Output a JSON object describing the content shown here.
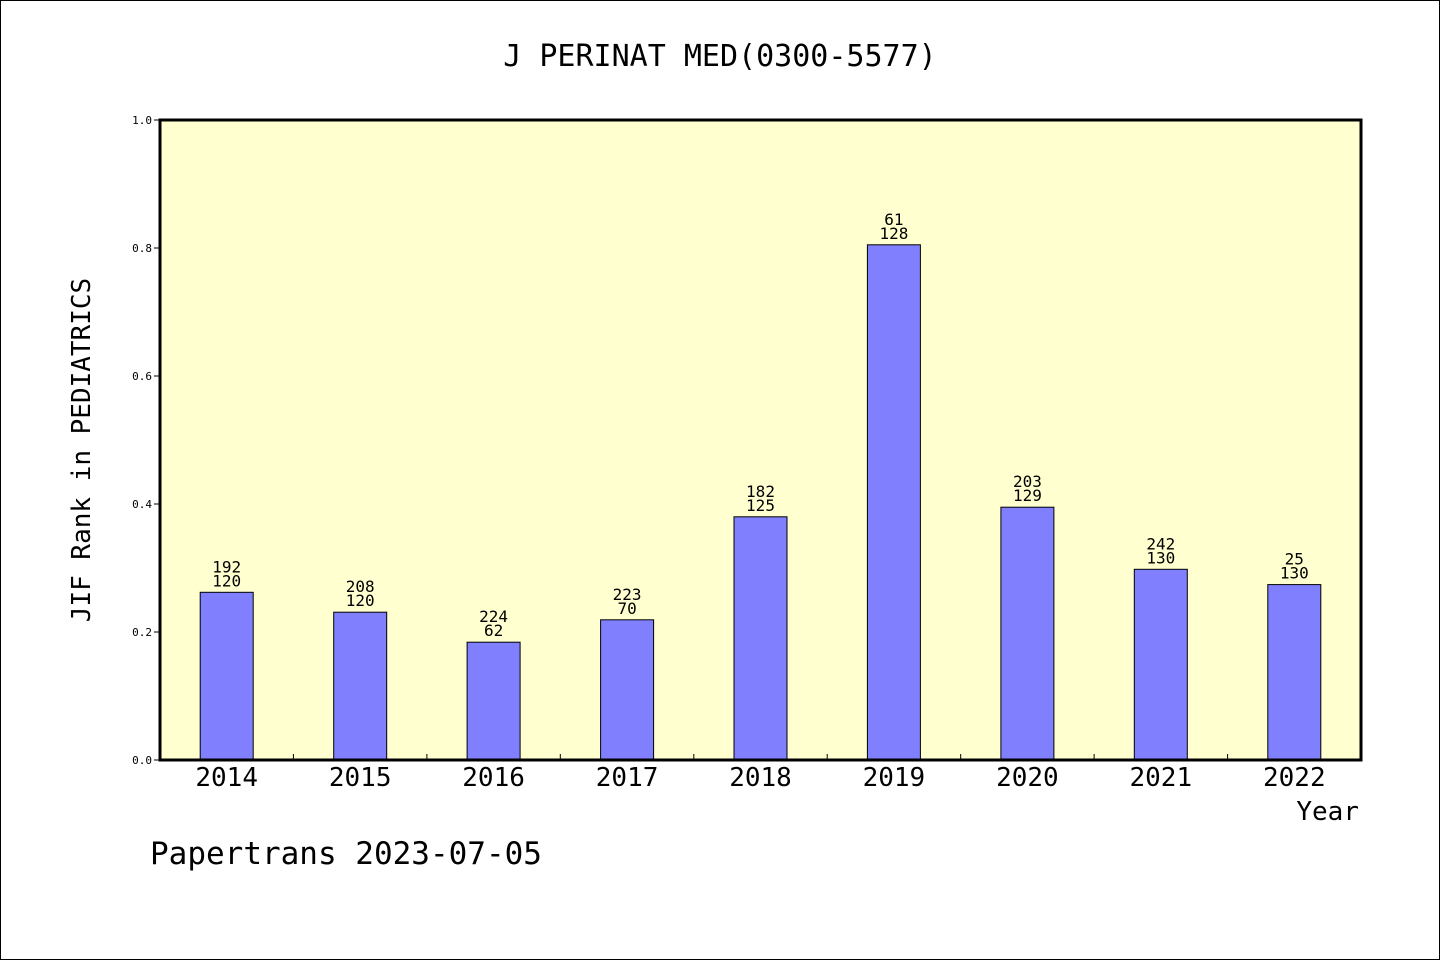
{
  "chart_data": {
    "type": "bar",
    "title": "J PERINAT MED(0300-5577)",
    "xlabel": "Year",
    "ylabel": "JIF Rank in PEDIATRICS",
    "ylim": [
      0,
      1.0
    ],
    "yticks": [
      "0.0",
      "0.2",
      "0.4",
      "0.6",
      "0.8",
      "1.0"
    ],
    "grid": false,
    "categories": [
      "2014",
      "2015",
      "2016",
      "2017",
      "2018",
      "2019",
      "2020",
      "2021",
      "2022"
    ],
    "values": [
      0.262,
      0.231,
      0.184,
      0.219,
      0.38,
      0.805,
      0.395,
      0.298,
      0.274
    ],
    "labels_top": [
      "192",
      "208",
      "224",
      "223",
      "182",
      "61",
      "203",
      "242",
      "25"
    ],
    "labels_bottom": [
      "120",
      "120",
      "62",
      "70",
      "125",
      "128",
      "129",
      "130",
      "130"
    ],
    "colors": {
      "plot_background": "#ffffd0",
      "bar_fill": "#8080ff",
      "bar_stroke": "#000000"
    }
  },
  "footer": {
    "text": "Papertrans 2023-07-05"
  }
}
